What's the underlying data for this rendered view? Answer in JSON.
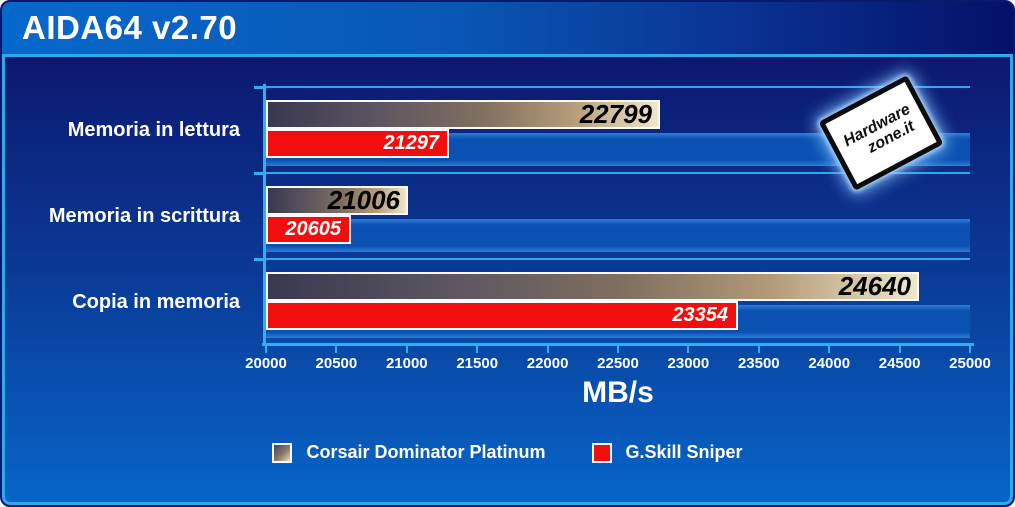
{
  "window": {
    "title": "AIDA64 v2.70"
  },
  "watermark": {
    "line1": "Hardware",
    "line2": "zone.it"
  },
  "colors": {
    "accent_cyan": "#2fa9ec",
    "series_red": "#f20d0e",
    "bar_gradient_start": "#393850",
    "bar_gradient_end": "#efe7ca",
    "titlebar_left": "#0768cc",
    "titlebar_right": "#041068",
    "chart_bg_top": "#0c1870",
    "chart_bg_bottom": "#0765c8",
    "value_label_series1": "#000000",
    "value_label_series2": "#ffffff",
    "text": "#ffffff"
  },
  "chart_data": {
    "type": "bar",
    "orientation": "horizontal",
    "title": "AIDA64 v2.70",
    "categories": [
      "Memoria in lettura",
      "Memoria in scrittura",
      "Copia in memoria"
    ],
    "series": [
      {
        "name": "Corsair Dominator Platinum",
        "style": "gradient",
        "values": [
          22799,
          21006,
          24640
        ]
      },
      {
        "name": "G.Skill Sniper",
        "style": "red",
        "values": [
          21297,
          20605,
          23354
        ]
      }
    ],
    "xlabel": "MB/s",
    "xlim": [
      20000,
      25000
    ],
    "xticks": [
      20000,
      20500,
      21000,
      21500,
      22000,
      22500,
      23000,
      23500,
      24000,
      24500,
      25000
    ],
    "grid": "category-boundaries",
    "legend_position": "bottom"
  }
}
